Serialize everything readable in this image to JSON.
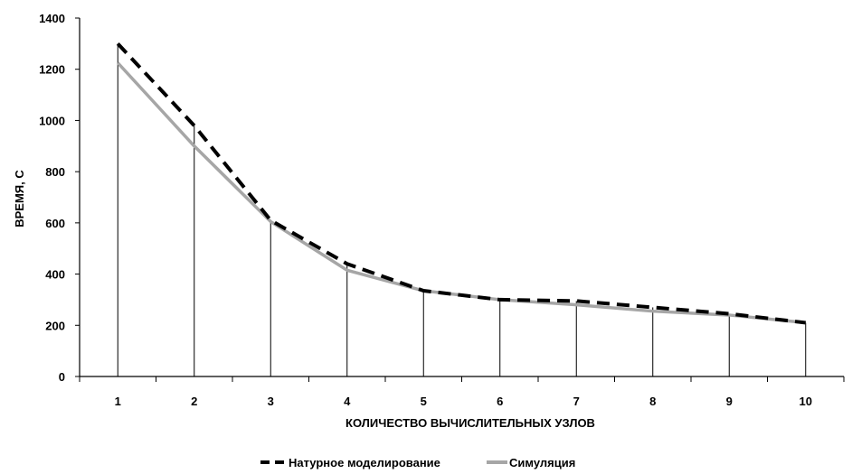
{
  "chart_data": {
    "type": "line",
    "title": "",
    "xlabel": "КОЛИЧЕСТВО ВЫЧИСЛИТЕЛЬНЫХ УЗЛОВ",
    "ylabel": "ВРЕМЯ, С",
    "categories": [
      1,
      2,
      3,
      4,
      5,
      6,
      7,
      8,
      9,
      10
    ],
    "ylim": [
      0,
      1400
    ],
    "yticks": [
      0,
      200,
      400,
      600,
      800,
      1000,
      1200,
      1400
    ],
    "drop_lines": true,
    "legend_position": "bottom",
    "series": [
      {
        "name": "Натурное моделирование",
        "style": "dashed",
        "color": "#000000",
        "values": [
          1300,
          980,
          610,
          440,
          335,
          300,
          295,
          270,
          245,
          210
        ]
      },
      {
        "name": "Симуляция",
        "style": "solid",
        "color": "#a6a6a6",
        "values": [
          1225,
          900,
          605,
          415,
          335,
          300,
          280,
          255,
          240,
          210
        ]
      }
    ]
  }
}
